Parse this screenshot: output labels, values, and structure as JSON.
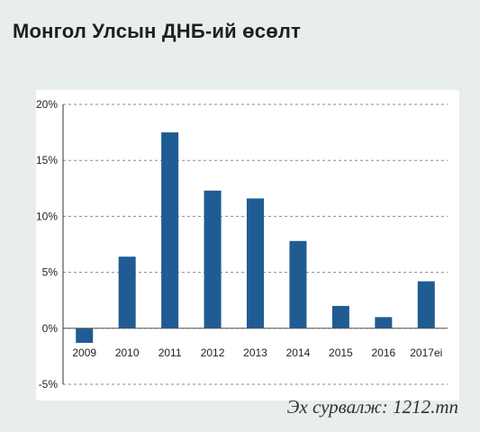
{
  "title": "Монгол Улсын ДНБ-ий өсөлт",
  "source": "Эх сурвалж: 1212.mn",
  "colors": {
    "bar": "#1f5c93",
    "grid": "#8a8a8a",
    "axis": "#333333"
  },
  "chart_data": {
    "type": "bar",
    "title": "Монгол Улсын ДНБ-ий өсөлт",
    "categories": [
      "2009",
      "2010",
      "2011",
      "2012",
      "2013",
      "2014",
      "2015",
      "2016",
      "2017еі"
    ],
    "values": [
      -1.3,
      6.4,
      17.5,
      12.3,
      11.6,
      7.8,
      2.0,
      1.0,
      4.2
    ],
    "yticks": [
      "-5%",
      "0%",
      "5%",
      "10%",
      "15%",
      "20%"
    ],
    "ylim": [
      -5,
      20
    ],
    "xlabel": "",
    "ylabel": "",
    "grid": true,
    "legend": "none"
  }
}
